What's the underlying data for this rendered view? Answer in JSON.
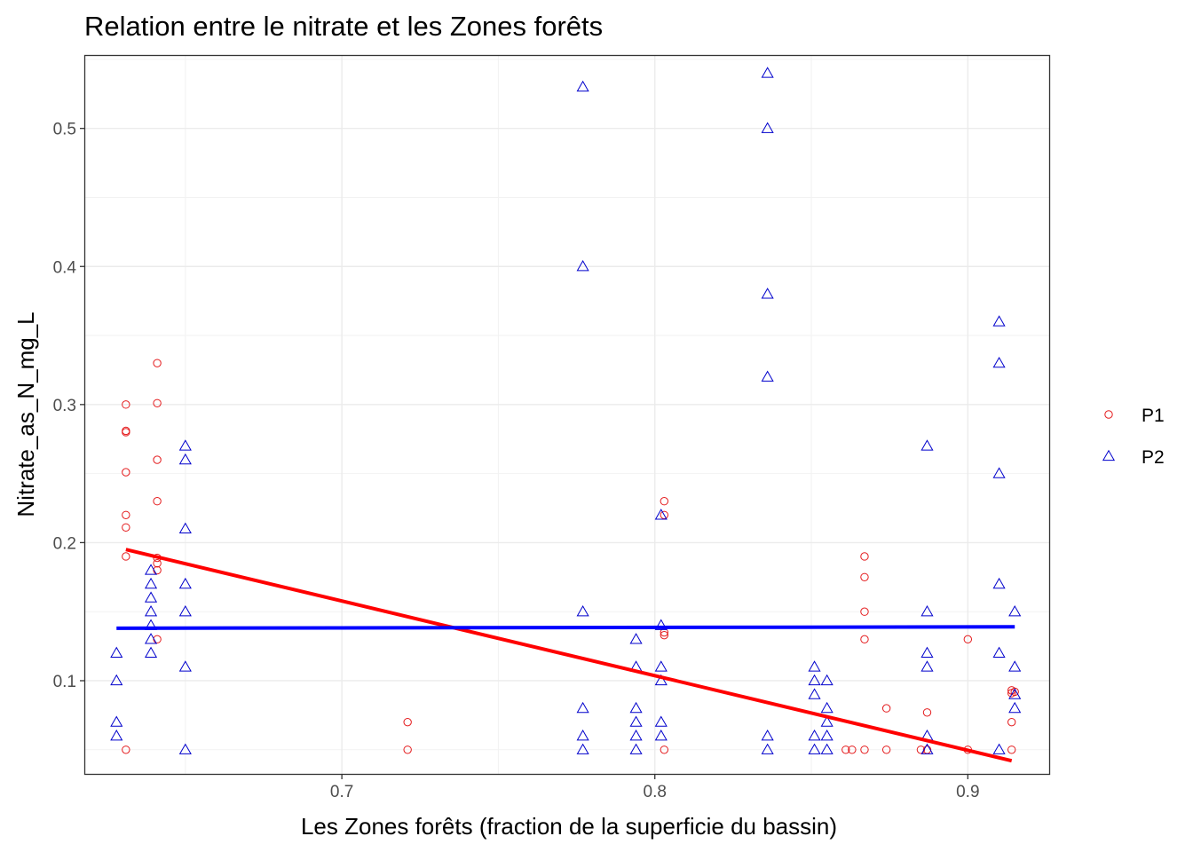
{
  "chart_data": {
    "type": "scatter",
    "title": "Relation entre le nitrate et les Zones forêts",
    "xlabel": "Les Zones forêts (fraction de la superficie du bassin)",
    "ylabel": "Nitrate_as_N_mg_L",
    "xlim": [
      0.618,
      0.926
    ],
    "ylim": [
      0.0325,
      0.5525
    ],
    "x_ticks": [
      0.7,
      0.8,
      0.9
    ],
    "x_tick_labels": [
      "0.7",
      "0.8",
      "0.9"
    ],
    "y_ticks": [
      0.1,
      0.2,
      0.3,
      0.4,
      0.5
    ],
    "y_tick_labels": [
      "0.1",
      "0.2",
      "0.3",
      "0.4",
      "0.5"
    ],
    "grid": true,
    "legend_position": "right",
    "series": [
      {
        "name": "P1",
        "marker": "circle",
        "color": "#e41a1c",
        "points": [
          [
            0.631,
            0.3
          ],
          [
            0.631,
            0.281
          ],
          [
            0.631,
            0.28
          ],
          [
            0.631,
            0.251
          ],
          [
            0.631,
            0.22
          ],
          [
            0.631,
            0.211
          ],
          [
            0.631,
            0.19
          ],
          [
            0.631,
            0.05
          ],
          [
            0.641,
            0.33
          ],
          [
            0.641,
            0.301
          ],
          [
            0.641,
            0.26
          ],
          [
            0.641,
            0.23
          ],
          [
            0.641,
            0.189
          ],
          [
            0.641,
            0.185
          ],
          [
            0.641,
            0.18
          ],
          [
            0.641,
            0.13
          ],
          [
            0.721,
            0.07
          ],
          [
            0.721,
            0.05
          ],
          [
            0.803,
            0.23
          ],
          [
            0.803,
            0.22
          ],
          [
            0.803,
            0.135
          ],
          [
            0.803,
            0.133
          ],
          [
            0.803,
            0.05
          ],
          [
            0.861,
            0.05
          ],
          [
            0.863,
            0.05
          ],
          [
            0.867,
            0.19
          ],
          [
            0.867,
            0.175
          ],
          [
            0.867,
            0.15
          ],
          [
            0.867,
            0.13
          ],
          [
            0.867,
            0.05
          ],
          [
            0.874,
            0.08
          ],
          [
            0.874,
            0.05
          ],
          [
            0.885,
            0.05
          ],
          [
            0.887,
            0.077
          ],
          [
            0.887,
            0.05
          ],
          [
            0.9,
            0.13
          ],
          [
            0.9,
            0.05
          ],
          [
            0.914,
            0.093
          ],
          [
            0.914,
            0.091
          ],
          [
            0.914,
            0.07
          ],
          [
            0.914,
            0.05
          ],
          [
            0.915,
            0.092
          ]
        ],
        "trend": {
          "x": [
            0.631,
            0.914
          ],
          "y": [
            0.195,
            0.042
          ]
        }
      },
      {
        "name": "P2",
        "marker": "triangle",
        "color": "#0000cc",
        "points": [
          [
            0.628,
            0.12
          ],
          [
            0.628,
            0.1
          ],
          [
            0.628,
            0.07
          ],
          [
            0.628,
            0.06
          ],
          [
            0.639,
            0.18
          ],
          [
            0.639,
            0.17
          ],
          [
            0.639,
            0.16
          ],
          [
            0.639,
            0.15
          ],
          [
            0.639,
            0.14
          ],
          [
            0.639,
            0.13
          ],
          [
            0.639,
            0.12
          ],
          [
            0.65,
            0.27
          ],
          [
            0.65,
            0.26
          ],
          [
            0.65,
            0.21
          ],
          [
            0.65,
            0.17
          ],
          [
            0.65,
            0.15
          ],
          [
            0.65,
            0.11
          ],
          [
            0.65,
            0.05
          ],
          [
            0.777,
            0.53
          ],
          [
            0.777,
            0.4
          ],
          [
            0.777,
            0.15
          ],
          [
            0.777,
            0.08
          ],
          [
            0.777,
            0.06
          ],
          [
            0.777,
            0.05
          ],
          [
            0.794,
            0.13
          ],
          [
            0.794,
            0.11
          ],
          [
            0.794,
            0.08
          ],
          [
            0.794,
            0.07
          ],
          [
            0.794,
            0.06
          ],
          [
            0.794,
            0.05
          ],
          [
            0.802,
            0.22
          ],
          [
            0.802,
            0.14
          ],
          [
            0.802,
            0.11
          ],
          [
            0.802,
            0.1
          ],
          [
            0.802,
            0.07
          ],
          [
            0.802,
            0.06
          ],
          [
            0.836,
            0.54
          ],
          [
            0.836,
            0.5
          ],
          [
            0.836,
            0.38
          ],
          [
            0.836,
            0.32
          ],
          [
            0.836,
            0.06
          ],
          [
            0.836,
            0.05
          ],
          [
            0.851,
            0.11
          ],
          [
            0.851,
            0.1
          ],
          [
            0.851,
            0.09
          ],
          [
            0.851,
            0.06
          ],
          [
            0.851,
            0.05
          ],
          [
            0.855,
            0.1
          ],
          [
            0.855,
            0.08
          ],
          [
            0.855,
            0.07
          ],
          [
            0.855,
            0.06
          ],
          [
            0.855,
            0.05
          ],
          [
            0.887,
            0.27
          ],
          [
            0.887,
            0.15
          ],
          [
            0.887,
            0.12
          ],
          [
            0.887,
            0.11
          ],
          [
            0.887,
            0.06
          ],
          [
            0.887,
            0.05
          ],
          [
            0.91,
            0.36
          ],
          [
            0.91,
            0.33
          ],
          [
            0.91,
            0.25
          ],
          [
            0.91,
            0.17
          ],
          [
            0.91,
            0.12
          ],
          [
            0.91,
            0.05
          ],
          [
            0.915,
            0.15
          ],
          [
            0.915,
            0.11
          ],
          [
            0.915,
            0.09
          ],
          [
            0.915,
            0.08
          ]
        ],
        "trend": {
          "x": [
            0.628,
            0.915
          ],
          "y": [
            0.138,
            0.139
          ]
        }
      }
    ]
  }
}
